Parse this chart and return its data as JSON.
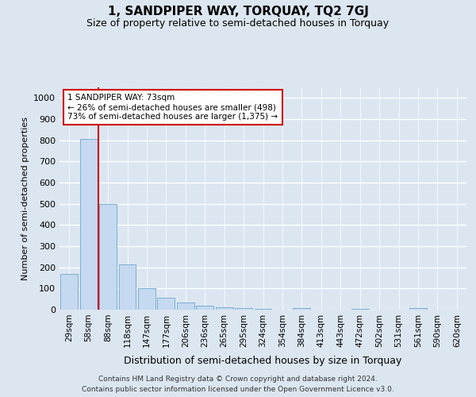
{
  "title": "1, SANDPIPER WAY, TORQUAY, TQ2 7GJ",
  "subtitle": "Size of property relative to semi-detached houses in Torquay",
  "xlabel": "Distribution of semi-detached houses by size in Torquay",
  "ylabel": "Number of semi-detached properties",
  "bar_labels": [
    "29sqm",
    "58sqm",
    "88sqm",
    "118sqm",
    "147sqm",
    "177sqm",
    "206sqm",
    "236sqm",
    "265sqm",
    "295sqm",
    "324sqm",
    "354sqm",
    "384sqm",
    "413sqm",
    "443sqm",
    "472sqm",
    "502sqm",
    "531sqm",
    "561sqm",
    "590sqm",
    "620sqm"
  ],
  "bar_values": [
    170,
    805,
    500,
    215,
    100,
    55,
    35,
    18,
    10,
    7,
    5,
    0,
    8,
    0,
    0,
    5,
    0,
    0,
    8,
    0,
    0
  ],
  "bar_color": "#c5d9f0",
  "bar_edge_color": "#7bafd4",
  "ylim": [
    0,
    1050
  ],
  "yticks": [
    0,
    100,
    200,
    300,
    400,
    500,
    600,
    700,
    800,
    900,
    1000
  ],
  "bg_color": "#dce6f1",
  "plot_bg_color": "#dce6f1",
  "grid_color": "#ffffff",
  "marker_line_color": "#cc0000",
  "annotation_box_color": "#ffffff",
  "annotation_box_edge": "#cc0000",
  "pct_smaller": 26,
  "pct_smaller_count": 498,
  "pct_larger": 73,
  "pct_larger_count": 1375,
  "footer_line1": "Contains HM Land Registry data © Crown copyright and database right 2024.",
  "footer_line2": "Contains public sector information licensed under the Open Government Licence v3.0."
}
